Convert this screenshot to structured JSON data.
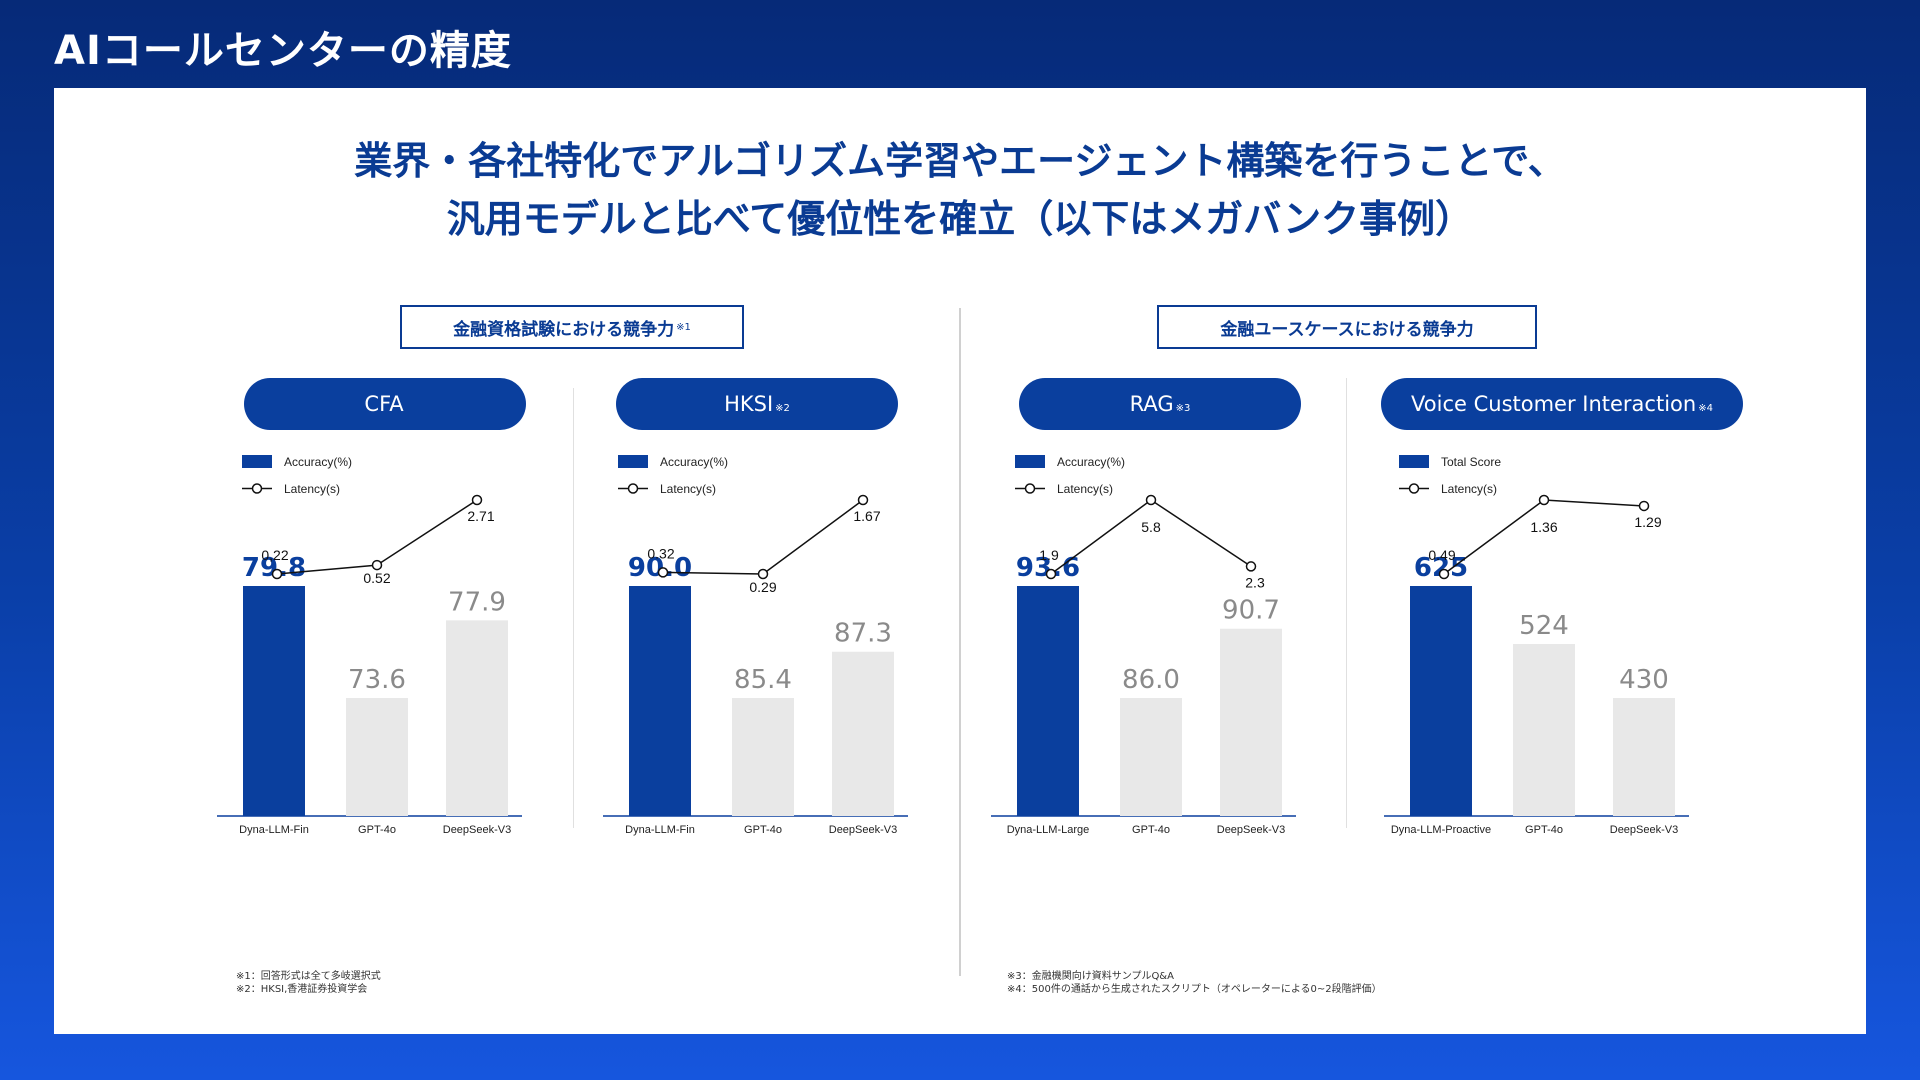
{
  "page_title": "AIコールセンターの精度",
  "headline": {
    "line1": "業界・各社特化でアルゴリズム学習やエージェント構築を行うことで、",
    "line2": "汎用モデルと比べて優位性を確立（以下はメガバンク事例）"
  },
  "groups": [
    {
      "label": "金融資格試験における競争力",
      "note_ref": "※1"
    },
    {
      "label": "金融ユースケースにおける競争力",
      "note_ref": ""
    }
  ],
  "colors": {
    "primary": "#0a3f9e",
    "bar_gray": "#e8e8e8",
    "label_gray": "#8a8a8a"
  },
  "chart_data": [
    {
      "type": "bar+line",
      "title": "CFA",
      "title_note": "",
      "legend": {
        "bar": "Accuracy(%)",
        "line": "Latency(s)"
      },
      "categories": [
        "Dyna-LLM-Fin",
        "GPT-4o",
        "DeepSeek-V3"
      ],
      "bar_values": [
        79.8,
        73.6,
        77.9
      ],
      "bar_labels": [
        "79.8",
        "73.6",
        "77.9"
      ],
      "line_values": [
        0.22,
        0.52,
        2.71
      ],
      "line_labels": [
        "0,22",
        "0.52",
        "2.71"
      ]
    },
    {
      "type": "bar+line",
      "title": "HKSI",
      "title_note": "※2",
      "legend": {
        "bar": "Accuracy(%)",
        "line": "Latency(s)"
      },
      "categories": [
        "Dyna-LLM-Fin",
        "GPT-4o",
        "DeepSeek-V3"
      ],
      "bar_values": [
        90.0,
        85.4,
        87.3
      ],
      "bar_labels": [
        "90.0",
        "85.4",
        "87.3"
      ],
      "line_values": [
        0.32,
        0.29,
        1.67
      ],
      "line_labels": [
        "0.32",
        "0.29",
        "1.67"
      ]
    },
    {
      "type": "bar+line",
      "title": "RAG",
      "title_note": "※3",
      "legend": {
        "bar": "Accuracy(%)",
        "line": "Latency(s)"
      },
      "categories": [
        "Dyna-LLM-Large",
        "GPT-4o",
        "DeepSeek-V3"
      ],
      "bar_values": [
        93.6,
        86.0,
        90.7
      ],
      "bar_labels": [
        "93.6",
        "86.0",
        "90.7"
      ],
      "line_values": [
        1.9,
        5.8,
        2.3
      ],
      "line_labels": [
        "1.9",
        "5.8",
        "2.3"
      ]
    },
    {
      "type": "bar+line",
      "title": "Voice Customer Interaction",
      "title_note": "※4",
      "legend": {
        "bar": "Total Score",
        "line": "Latency(s)"
      },
      "categories": [
        "Dyna-LLM-Proactive",
        "GPT-4o",
        "DeepSeek-V3"
      ],
      "bar_values": [
        625,
        524,
        430
      ],
      "bar_labels": [
        "625",
        "524",
        "430"
      ],
      "line_values": [
        0.49,
        1.36,
        1.29
      ],
      "line_labels": [
        "0.49",
        "1.36",
        "1.29"
      ]
    }
  ],
  "notes_left": [
    "※1：回答形式は全て多岐選択式",
    "※2：HKSI,香港証券投資学会"
  ],
  "notes_right": [
    "※3：金融機関向け資料サンプルQ&A",
    "※4：500件の通話から生成されたスクリプト（オペレーターによる0~2段階評価）"
  ]
}
